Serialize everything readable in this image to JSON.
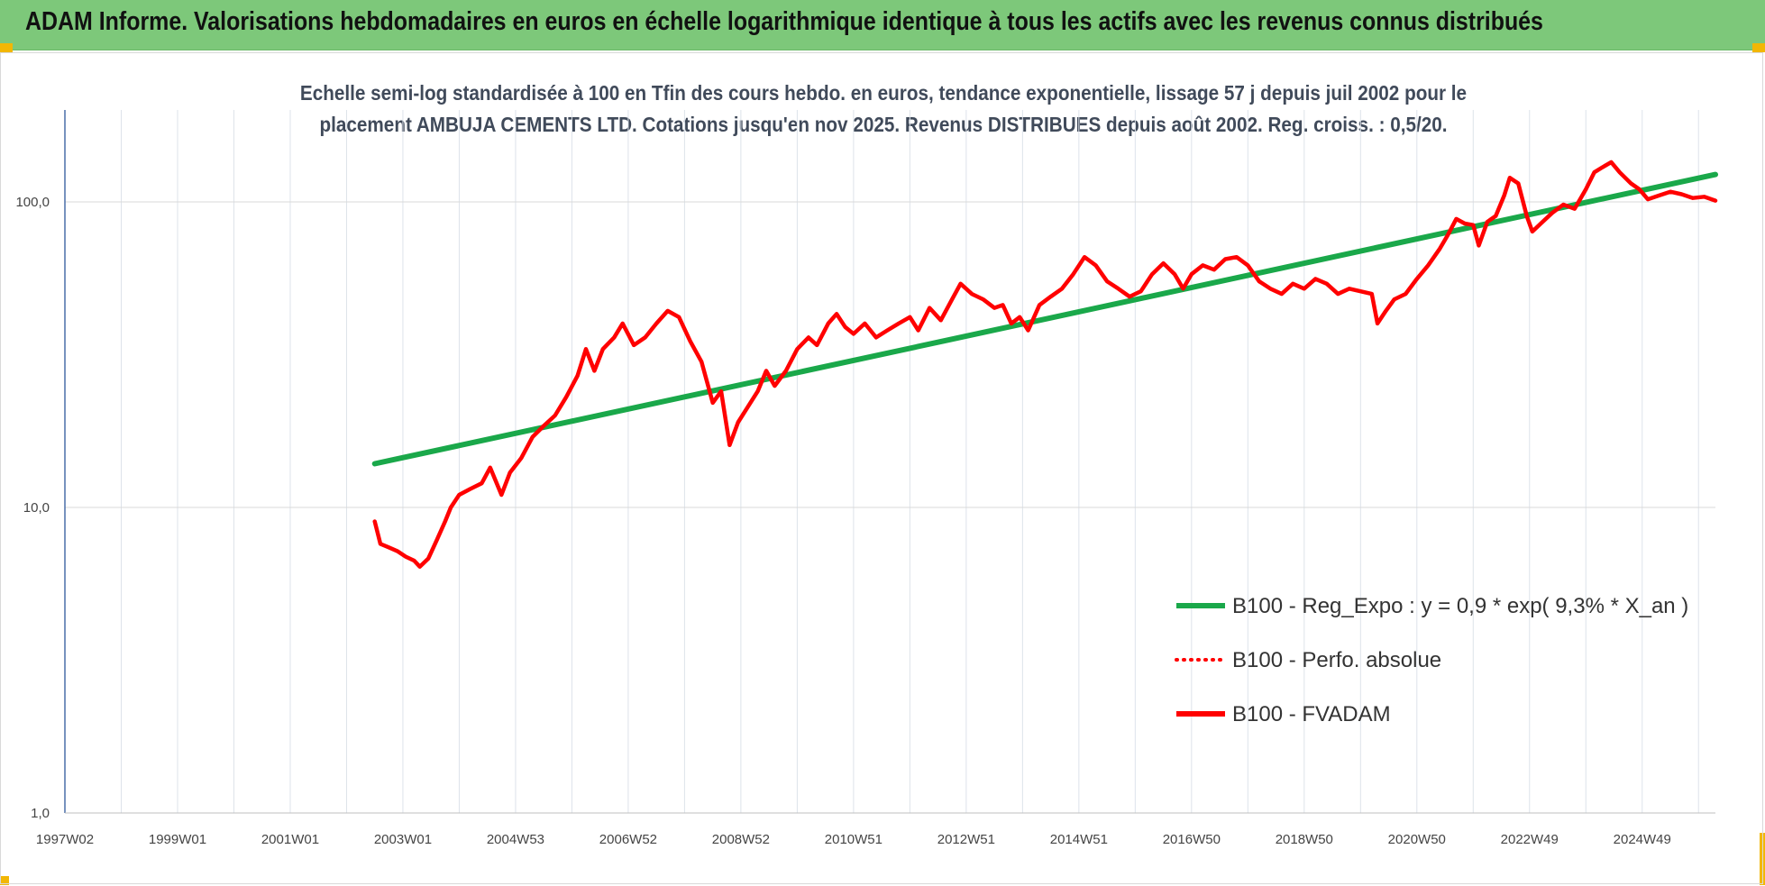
{
  "banner": {
    "title": "ADAM Informe. Valorisations hebdomadaires en euros en échelle logarithmique identique à tous les actifs avec les revenus connus distribués",
    "background": "#7dc87a",
    "corner_color": "#f2b705"
  },
  "chart_data": {
    "type": "line",
    "title": "Echelle semi-log standardisée à 100 en Tfin des cours hebdo. en euros, tendance exponentielle, lissage 57 j depuis juil 2002 pour le placement AMBUJA CEMENTS LTD. Cotations jusqu'en nov 2025. Revenus DISTRIBUES depuis août 2002. Reg. croiss. : 0,5/20.",
    "title_lines": [
      "Echelle semi-log standardisée à 100 en Tfin des cours hebdo. en euros, tendance exponentielle, lissage 57 j depuis juil 2002 pour le",
      "placement AMBUJA CEMENTS LTD. Cotations jusqu'en nov 2025. Revenus DISTRIBUES depuis août 2002. Reg. croiss. : 0,5/20."
    ],
    "y_scale": "log",
    "ylim": [
      1,
      200
    ],
    "xlim": [
      1997.0,
      2026.3
    ],
    "y_ticks": [
      {
        "value": 1,
        "label": "1,0"
      },
      {
        "value": 10,
        "label": "10,0"
      },
      {
        "value": 100,
        "label": "100,0"
      }
    ],
    "x_ticks": [
      {
        "value": 1997.0,
        "label": "1997W02"
      },
      {
        "value": 1999.0,
        "label": "1999W01"
      },
      {
        "value": 2001.0,
        "label": "2001W01"
      },
      {
        "value": 2003.0,
        "label": "2003W01"
      },
      {
        "value": 2005.0,
        "label": "2004W53"
      },
      {
        "value": 2007.0,
        "label": "2006W52"
      },
      {
        "value": 2009.0,
        "label": "2008W52"
      },
      {
        "value": 2011.0,
        "label": "2010W51"
      },
      {
        "value": 2013.0,
        "label": "2012W51"
      },
      {
        "value": 2015.0,
        "label": "2014W51"
      },
      {
        "value": 2017.0,
        "label": "2016W50"
      },
      {
        "value": 2019.0,
        "label": "2018W50"
      },
      {
        "value": 2021.0,
        "label": "2020W50"
      },
      {
        "value": 2023.0,
        "label": "2022W49"
      },
      {
        "value": 2025.0,
        "label": "2024W49"
      }
    ],
    "grid": true,
    "legend_position": "bottom-right",
    "series": [
      {
        "name": "B100 - Reg_Expo : y = 0,9 * exp( 9,3% *  X_an )",
        "color": "#1aa84a",
        "style": "solid",
        "points": [
          [
            2002.5,
            13.9
          ],
          [
            2026.3,
            123.0
          ]
        ]
      },
      {
        "name": "B100 - Perfo. absolue",
        "color": "#ff0000",
        "style": "dotted",
        "points": []
      },
      {
        "name": "B100 - FVADAM",
        "color": "#ff0000",
        "style": "solid",
        "points": [
          [
            2002.5,
            9.0
          ],
          [
            2002.6,
            7.6
          ],
          [
            2002.75,
            7.4
          ],
          [
            2002.9,
            7.2
          ],
          [
            2003.05,
            6.9
          ],
          [
            2003.2,
            6.7
          ],
          [
            2003.3,
            6.4
          ],
          [
            2003.45,
            6.8
          ],
          [
            2003.6,
            7.8
          ],
          [
            2003.75,
            9.0
          ],
          [
            2003.85,
            10.0
          ],
          [
            2004.0,
            11.0
          ],
          [
            2004.2,
            11.5
          ],
          [
            2004.4,
            12.0
          ],
          [
            2004.55,
            13.5
          ],
          [
            2004.75,
            11.0
          ],
          [
            2004.9,
            13.0
          ],
          [
            2005.1,
            14.5
          ],
          [
            2005.3,
            17.0
          ],
          [
            2005.5,
            18.5
          ],
          [
            2005.7,
            20.0
          ],
          [
            2005.9,
            23.0
          ],
          [
            2006.1,
            27.0
          ],
          [
            2006.25,
            33.0
          ],
          [
            2006.4,
            28.0
          ],
          [
            2006.55,
            33.0
          ],
          [
            2006.75,
            36.0
          ],
          [
            2006.9,
            40.0
          ],
          [
            2007.1,
            34.0
          ],
          [
            2007.3,
            36.0
          ],
          [
            2007.5,
            40.0
          ],
          [
            2007.7,
            44.0
          ],
          [
            2007.9,
            42.0
          ],
          [
            2008.1,
            35.0
          ],
          [
            2008.3,
            30.0
          ],
          [
            2008.5,
            22.0
          ],
          [
            2008.65,
            24.0
          ],
          [
            2008.8,
            16.0
          ],
          [
            2008.95,
            19.0
          ],
          [
            2009.1,
            21.0
          ],
          [
            2009.3,
            24.0
          ],
          [
            2009.45,
            28.0
          ],
          [
            2009.6,
            25.0
          ],
          [
            2009.8,
            28.0
          ],
          [
            2010.0,
            33.0
          ],
          [
            2010.2,
            36.0
          ],
          [
            2010.35,
            34.0
          ],
          [
            2010.55,
            40.0
          ],
          [
            2010.7,
            43.0
          ],
          [
            2010.85,
            39.0
          ],
          [
            2011.0,
            37.0
          ],
          [
            2011.2,
            40.0
          ],
          [
            2011.4,
            36.0
          ],
          [
            2011.6,
            38.0
          ],
          [
            2011.8,
            40.0
          ],
          [
            2012.0,
            42.0
          ],
          [
            2012.15,
            38.0
          ],
          [
            2012.35,
            45.0
          ],
          [
            2012.55,
            41.0
          ],
          [
            2012.75,
            48.0
          ],
          [
            2012.9,
            54.0
          ],
          [
            2013.1,
            50.0
          ],
          [
            2013.3,
            48.0
          ],
          [
            2013.5,
            45.0
          ],
          [
            2013.65,
            46.0
          ],
          [
            2013.8,
            40.0
          ],
          [
            2013.95,
            42.0
          ],
          [
            2014.1,
            38.0
          ],
          [
            2014.3,
            46.0
          ],
          [
            2014.5,
            49.0
          ],
          [
            2014.7,
            52.0
          ],
          [
            2014.9,
            58.0
          ],
          [
            2015.1,
            66.0
          ],
          [
            2015.3,
            62.0
          ],
          [
            2015.5,
            55.0
          ],
          [
            2015.7,
            52.0
          ],
          [
            2015.9,
            49.0
          ],
          [
            2016.1,
            51.0
          ],
          [
            2016.3,
            58.0
          ],
          [
            2016.5,
            63.0
          ],
          [
            2016.7,
            58.0
          ],
          [
            2016.85,
            52.0
          ],
          [
            2017.0,
            58.0
          ],
          [
            2017.2,
            62.0
          ],
          [
            2017.4,
            60.0
          ],
          [
            2017.6,
            65.0
          ],
          [
            2017.8,
            66.0
          ],
          [
            2018.0,
            62.0
          ],
          [
            2018.2,
            55.0
          ],
          [
            2018.4,
            52.0
          ],
          [
            2018.6,
            50.0
          ],
          [
            2018.8,
            54.0
          ],
          [
            2019.0,
            52.0
          ],
          [
            2019.2,
            56.0
          ],
          [
            2019.4,
            54.0
          ],
          [
            2019.6,
            50.0
          ],
          [
            2019.8,
            52.0
          ],
          [
            2020.0,
            51.0
          ],
          [
            2020.2,
            50.0
          ],
          [
            2020.3,
            40.0
          ],
          [
            2020.45,
            44.0
          ],
          [
            2020.6,
            48.0
          ],
          [
            2020.8,
            50.0
          ],
          [
            2021.0,
            56.0
          ],
          [
            2021.2,
            62.0
          ],
          [
            2021.4,
            70.0
          ],
          [
            2021.55,
            78.0
          ],
          [
            2021.7,
            88.0
          ],
          [
            2021.85,
            85.0
          ],
          [
            2022.0,
            84.0
          ],
          [
            2022.1,
            72.0
          ],
          [
            2022.25,
            86.0
          ],
          [
            2022.4,
            90.0
          ],
          [
            2022.55,
            105.0
          ],
          [
            2022.65,
            120.0
          ],
          [
            2022.8,
            115.0
          ],
          [
            2022.95,
            90.0
          ],
          [
            2023.05,
            80.0
          ],
          [
            2023.2,
            85.0
          ],
          [
            2023.4,
            92.0
          ],
          [
            2023.6,
            98.0
          ],
          [
            2023.8,
            95.0
          ],
          [
            2024.0,
            110.0
          ],
          [
            2024.15,
            125.0
          ],
          [
            2024.3,
            130.0
          ],
          [
            2024.45,
            135.0
          ],
          [
            2024.6,
            125.0
          ],
          [
            2024.8,
            115.0
          ],
          [
            2024.95,
            110.0
          ],
          [
            2025.1,
            102.0
          ],
          [
            2025.3,
            105.0
          ],
          [
            2025.5,
            108.0
          ],
          [
            2025.7,
            106.0
          ],
          [
            2025.9,
            103.0
          ],
          [
            2026.1,
            104.0
          ],
          [
            2026.3,
            101.0
          ]
        ]
      }
    ]
  }
}
